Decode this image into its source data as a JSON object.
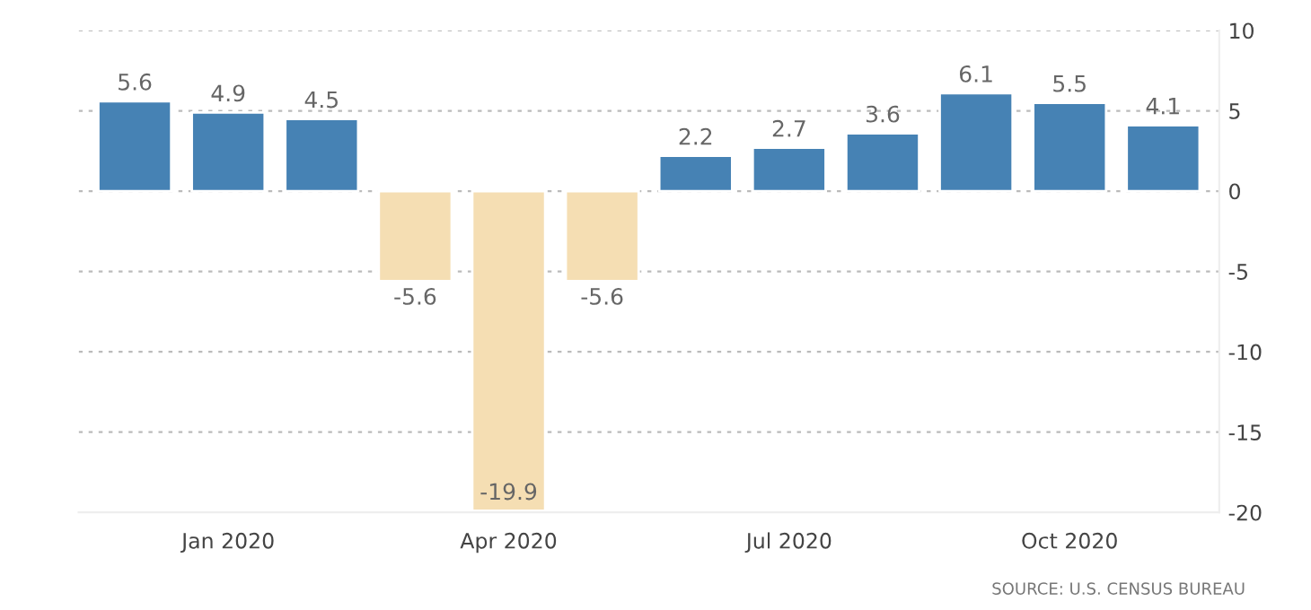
{
  "chart_data": {
    "type": "bar",
    "categories": [
      null,
      "Jan 2020",
      null,
      null,
      "Apr 2020",
      null,
      null,
      "Jul 2020",
      null,
      null,
      "Oct 2020",
      null
    ],
    "values": [
      5.6,
      4.9,
      4.5,
      -5.6,
      -19.9,
      -5.6,
      2.2,
      2.7,
      3.6,
      6.1,
      5.5,
      4.1
    ],
    "colors": [
      "#4682b4",
      "#4682b4",
      "#4682b4",
      "#f5deb3",
      "#f5deb3",
      "#f5deb3",
      "#4682b4",
      "#4682b4",
      "#4682b4",
      "#4682b4",
      "#4682b4",
      "#4682b4"
    ],
    "ylim": [
      -20,
      10
    ],
    "yticks": [
      -20,
      -15,
      -10,
      -5,
      0,
      5,
      10
    ],
    "grid": "y",
    "data_labels": true,
    "annotations": [
      "SOURCE: U.S. CENSUS BUREAU"
    ]
  }
}
